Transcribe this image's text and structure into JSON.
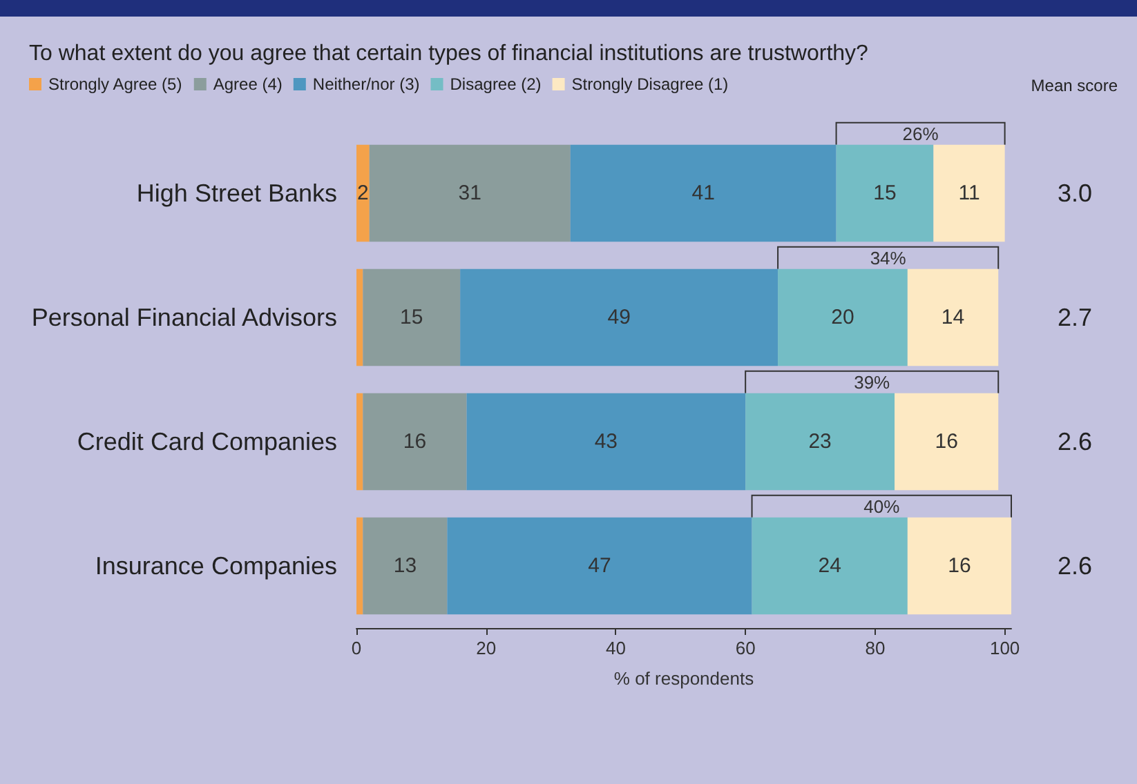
{
  "chart_data": {
    "type": "bar",
    "orientation": "horizontal",
    "stacked": true,
    "title": "To what extent do you agree that certain types of financial institutions are trustworthy?",
    "xlabel": "% of respondents",
    "categories": [
      "High Street Banks",
      "Personal Financial Advisors",
      "Credit Card Companies",
      "Insurance Companies"
    ],
    "series": [
      {
        "name": "Strongly Agree (5)",
        "color": "#f4a24a",
        "values": [
          2,
          1,
          1,
          1
        ],
        "value_labels": [
          "2",
          null,
          null,
          null
        ]
      },
      {
        "name": "Agree (4)",
        "color": "#8b9d9c",
        "values": [
          31,
          15,
          16,
          13
        ],
        "value_labels": [
          "31",
          "15",
          "16",
          "13"
        ]
      },
      {
        "name": "Neither/nor (3)",
        "color": "#4f97c0",
        "values": [
          41,
          49,
          43,
          47
        ],
        "value_labels": [
          "41",
          "49",
          "43",
          "47"
        ]
      },
      {
        "name": "Disagree (2)",
        "color": "#74bdc5",
        "values": [
          15,
          20,
          23,
          24
        ],
        "value_labels": [
          "15",
          "20",
          "23",
          "24"
        ]
      },
      {
        "name": "Strongly Disagree (1)",
        "color": "#fde9c3",
        "values": [
          11,
          14,
          16,
          16
        ],
        "value_labels": [
          "11",
          "14",
          "16",
          "16"
        ]
      }
    ],
    "xlim": [
      0,
      101
    ],
    "xticks": [
      0,
      20,
      40,
      60,
      80,
      100
    ],
    "grid": false,
    "legend": "top left",
    "annotations": [
      "Mean score",
      "26%",
      "34%",
      "39%",
      "40%",
      "3.0",
      "2.7",
      "2.6",
      "2.6"
    ]
  }
}
